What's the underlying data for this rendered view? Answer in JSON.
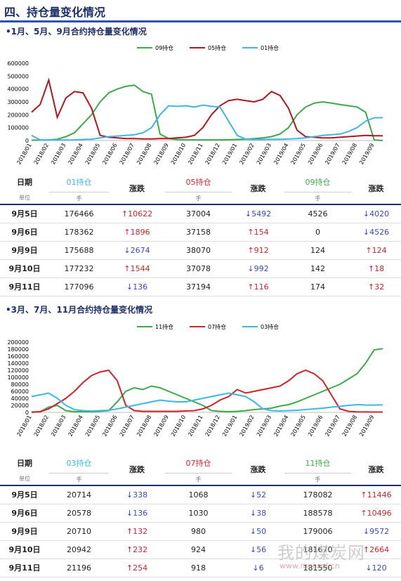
{
  "header": {
    "title": "四、持仓量变化情况"
  },
  "chart_data": [
    {
      "type": "line",
      "title": "•1月、5月、9月合约持仓量变化情况",
      "categories": [
        "2018/01",
        null,
        "2018/02",
        null,
        "2018/03",
        null,
        "2018/04",
        null,
        "2018/05",
        null,
        "2018/06",
        null,
        "2018/07",
        null,
        "2018/08",
        null,
        "2018/09",
        null,
        "2018/10",
        null,
        "2018/11",
        null,
        "2018/12",
        null,
        "2019/01",
        null,
        "2019/02",
        null,
        "2019/03",
        null,
        "2019/04",
        null,
        "2019/05",
        null,
        "2019/06",
        null,
        "2019/07",
        null,
        "2019/08",
        null,
        "2019/09",
        null
      ],
      "ylim": [
        0,
        600000
      ],
      "yticks": [
        0,
        100000,
        200000,
        300000,
        400000,
        500000,
        600000
      ],
      "grid": false,
      "series": [
        {
          "name": "09持仓",
          "color": "#3bab4a",
          "values": [
            2000,
            3000,
            5000,
            10000,
            30000,
            60000,
            130000,
            200000,
            300000,
            370000,
            400000,
            420000,
            430000,
            380000,
            360000,
            50000,
            15000,
            8000,
            5000,
            5000,
            5000,
            5000,
            5000,
            6000,
            8000,
            10000,
            15000,
            20000,
            30000,
            50000,
            100000,
            200000,
            260000,
            290000,
            300000,
            290000,
            280000,
            270000,
            260000,
            220000,
            4526,
            174
          ]
        },
        {
          "name": "05持仓",
          "color": "#b3161c",
          "values": [
            220000,
            280000,
            470000,
            180000,
            330000,
            380000,
            370000,
            250000,
            40000,
            25000,
            20000,
            15000,
            15000,
            12000,
            12000,
            15000,
            15000,
            20000,
            25000,
            40000,
            100000,
            200000,
            270000,
            310000,
            320000,
            310000,
            300000,
            320000,
            380000,
            350000,
            250000,
            80000,
            30000,
            25000,
            20000,
            20000,
            25000,
            30000,
            35000,
            40000,
            37004,
            37194
          ]
        },
        {
          "name": "01持仓",
          "color": "#3db7e4",
          "values": [
            40000,
            5000,
            3000,
            3000,
            4000,
            5000,
            8000,
            10000,
            20000,
            30000,
            35000,
            40000,
            45000,
            60000,
            100000,
            200000,
            270000,
            265000,
            270000,
            260000,
            275000,
            265000,
            260000,
            150000,
            40000,
            10000,
            8000,
            8000,
            10000,
            10000,
            12000,
            15000,
            20000,
            30000,
            40000,
            45000,
            50000,
            70000,
            100000,
            150000,
            176466,
            177096
          ]
        }
      ]
    },
    {
      "type": "line",
      "title": "•3月、7月、11月合约持仓量变化情况",
      "categories": [
        "2018/01",
        null,
        "2018/02",
        null,
        "2018/03",
        null,
        "2018/04",
        null,
        "2018/05",
        null,
        "2018/06",
        null,
        "2018/07",
        null,
        "2018/08",
        null,
        "2018/09",
        null,
        "2018/10",
        null,
        "2018/11",
        null,
        "2018/12",
        null,
        "2019/01",
        null,
        "2019/02",
        null,
        "2019/03",
        null,
        "2019/04",
        null,
        "2019/05",
        null,
        "2019/06",
        null,
        "2019/07",
        null,
        "2019/08",
        null,
        "2019/09",
        null
      ],
      "ylim": [
        0,
        200000
      ],
      "yticks": [
        0,
        20000,
        40000,
        60000,
        80000,
        100000,
        120000,
        140000,
        160000,
        180000,
        200000
      ],
      "grid": false,
      "series": [
        {
          "name": "11持仓",
          "color": "#3bab4a",
          "values": [
            0,
            2000,
            15000,
            20000,
            5000,
            2000,
            2000,
            2000,
            3000,
            5000,
            30000,
            60000,
            70000,
            65000,
            75000,
            70000,
            60000,
            50000,
            40000,
            30000,
            20000,
            5000,
            3000,
            2000,
            3000,
            5000,
            8000,
            10000,
            12000,
            18000,
            22000,
            30000,
            40000,
            50000,
            60000,
            70000,
            80000,
            95000,
            110000,
            140000,
            178082,
            181550
          ]
        },
        {
          "name": "07持仓",
          "color": "#d0242a",
          "values": [
            1000,
            2000,
            10000,
            25000,
            40000,
            60000,
            85000,
            105000,
            115000,
            120000,
            90000,
            20000,
            5000,
            3000,
            3000,
            3000,
            3000,
            3000,
            4000,
            5000,
            10000,
            20000,
            35000,
            45000,
            65000,
            55000,
            60000,
            65000,
            70000,
            75000,
            90000,
            110000,
            120000,
            110000,
            90000,
            50000,
            10000,
            3000,
            1500,
            1200,
            1068,
            918
          ]
        },
        {
          "name": "03持仓",
          "color": "#3db7e4",
          "values": [
            45000,
            50000,
            55000,
            40000,
            20000,
            8000,
            5000,
            4000,
            5000,
            6000,
            10000,
            15000,
            20000,
            25000,
            30000,
            35000,
            32000,
            30000,
            30000,
            35000,
            40000,
            45000,
            50000,
            55000,
            50000,
            45000,
            30000,
            10000,
            5000,
            4000,
            5000,
            6000,
            8000,
            10000,
            12000,
            15000,
            17000,
            20000,
            22000,
            21000,
            20714,
            21196
          ]
        }
      ]
    }
  ],
  "tables": [
    {
      "columns": [
        "日期",
        "01持仓",
        "涨跌",
        "05持仓",
        "涨跌",
        "09持仓",
        "涨跌"
      ],
      "units": [
        "单位",
        "手",
        "手",
        "手"
      ],
      "rows": [
        [
          "9月5日",
          176466,
          "↑10622",
          37004,
          "↓5492",
          4526,
          "↓4020"
        ],
        [
          "9月6日",
          178362,
          "↑1896",
          37158,
          "↑154",
          0,
          "↓4526"
        ],
        [
          "9月9日",
          175688,
          "↓2674",
          38070,
          "↑912",
          124,
          "↑124"
        ],
        [
          "9月10日",
          177232,
          "↑1544",
          37078,
          "↓992",
          142,
          "↑18"
        ],
        [
          "9月11日",
          177096,
          "↓136",
          37194,
          "↑116",
          174,
          "↑32"
        ]
      ]
    },
    {
      "columns": [
        "日期",
        "03持仓",
        "涨跌",
        "07持仓",
        "涨跌",
        "11持仓",
        "涨跌"
      ],
      "units": [
        "单位",
        "手",
        "手",
        "手"
      ],
      "rows": [
        [
          "9月5日",
          20714,
          "↓338",
          1068,
          "↓52",
          178082,
          "↑11446"
        ],
        [
          "9月6日",
          20578,
          "↓136",
          1030,
          "↓38",
          188578,
          "↑10496"
        ],
        [
          "9月9日",
          20710,
          "↑132",
          980,
          "↓50",
          179006,
          "↓9572"
        ],
        [
          "9月10日",
          20942,
          "↑232",
          924,
          "↓56",
          181670,
          "↑2664"
        ],
        [
          "9月11日",
          21196,
          "↑254",
          918,
          "↓6",
          181550,
          "↓120"
        ]
      ]
    }
  ],
  "watermark": {
    "name": "我的煤炭网",
    "url": "www.mycoal.cn"
  }
}
